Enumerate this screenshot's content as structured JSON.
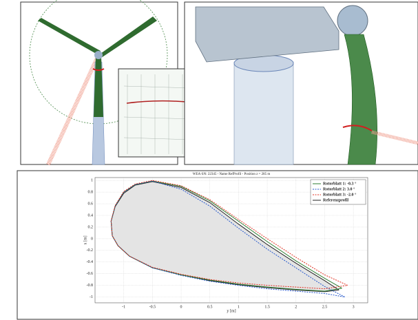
{
  "chart_data": {
    "type": "line",
    "title": "WEA-SN: 22345  -  Name RefProfil  -  Position z = 285 m",
    "x_label": "y [m]",
    "y_label": "x [m]",
    "xlim": [
      -1.5,
      3.25
    ],
    "ylim": [
      -1.1,
      1.05
    ],
    "xticks": [
      -1,
      -0.5,
      0,
      0.5,
      1,
      1.5,
      2,
      2.5,
      3
    ],
    "yticks": [
      1,
      0.8,
      0.6,
      0.4,
      0.2,
      0,
      -0.2,
      -0.4,
      -0.6,
      -0.8,
      -1
    ],
    "grid": true,
    "legend": "upper right",
    "series": [
      {
        "name": "Rotorblatt 1: -0.3 °",
        "color": "#2e7d32",
        "dash": "solid",
        "x": [
          2.8,
          2.5,
          2.0,
          1.5,
          1.0,
          0.5,
          0.0,
          -0.5,
          -0.8,
          -1.0,
          -1.15,
          -1.22,
          -1.2,
          -1.1,
          -0.9,
          -0.5,
          0.0,
          0.5,
          1.0,
          1.5,
          2.0,
          2.5,
          2.8
        ],
        "values": [
          -0.85,
          -0.68,
          -0.38,
          -0.05,
          0.3,
          0.65,
          0.9,
          0.99,
          0.93,
          0.8,
          0.56,
          0.3,
          0.05,
          -0.12,
          -0.3,
          -0.5,
          -0.62,
          -0.71,
          -0.78,
          -0.83,
          -0.87,
          -0.9,
          -0.85
        ]
      },
      {
        "name": "Rotorblatt 2: 3.0 °",
        "color": "#2255cc",
        "dash": "dashed",
        "x": [
          2.85,
          2.5,
          2.0,
          1.5,
          1.0,
          0.5,
          0.0,
          -0.5,
          -0.8,
          -1.0,
          -1.15,
          -1.22,
          -1.2,
          -1.1,
          -0.9,
          -0.5,
          0.0,
          0.5,
          1.0,
          1.5,
          2.0,
          2.5,
          2.85
        ],
        "values": [
          -1.0,
          -0.82,
          -0.5,
          -0.18,
          0.18,
          0.56,
          0.85,
          0.99,
          0.93,
          0.8,
          0.56,
          0.3,
          0.05,
          -0.12,
          -0.3,
          -0.5,
          -0.63,
          -0.73,
          -0.8,
          -0.86,
          -0.9,
          -0.94,
          -1.0
        ]
      },
      {
        "name": "Rotorblatt 3: -2.0 °",
        "color": "#e03020",
        "dash": "dashed",
        "x": [
          2.9,
          2.5,
          2.0,
          1.5,
          1.0,
          0.5,
          0.0,
          -0.5,
          -0.8,
          -1.0,
          -1.15,
          -1.22,
          -1.2,
          -1.1,
          -0.9,
          -0.5,
          0.0,
          0.5,
          1.0,
          1.5,
          2.0,
          2.5,
          2.9
        ],
        "values": [
          -0.8,
          -0.62,
          -0.32,
          0.0,
          0.33,
          0.67,
          0.91,
          1.0,
          0.94,
          0.81,
          0.57,
          0.31,
          0.05,
          -0.12,
          -0.3,
          -0.49,
          -0.61,
          -0.7,
          -0.76,
          -0.8,
          -0.83,
          -0.86,
          -0.8
        ]
      },
      {
        "name": "Referenzprofil",
        "color": "#222222",
        "dash": "solid",
        "fill": "#e4e4e4",
        "x": [
          2.75,
          2.5,
          2.0,
          1.5,
          1.0,
          0.5,
          0.0,
          -0.5,
          -0.8,
          -1.0,
          -1.15,
          -1.22,
          -1.2,
          -1.1,
          -0.9,
          -0.5,
          0.0,
          0.5,
          1.0,
          1.5,
          2.0,
          2.5,
          2.75
        ],
        "values": [
          -0.88,
          -0.72,
          -0.42,
          -0.1,
          0.25,
          0.62,
          0.88,
          0.98,
          0.92,
          0.78,
          0.55,
          0.3,
          0.05,
          -0.12,
          -0.3,
          -0.5,
          -0.62,
          -0.72,
          -0.79,
          -0.84,
          -0.88,
          -0.91,
          -0.88
        ]
      }
    ]
  }
}
